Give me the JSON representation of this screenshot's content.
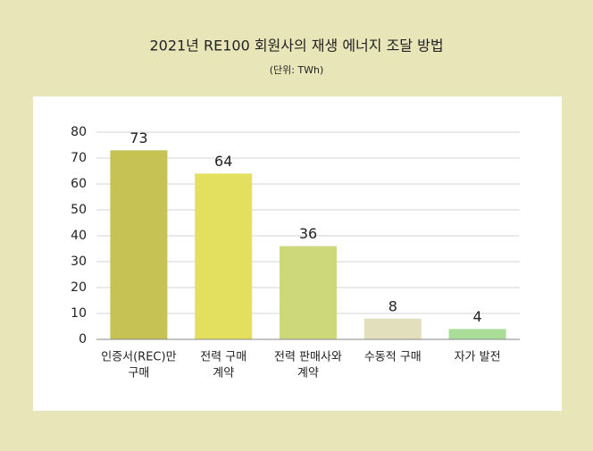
{
  "chart_data": {
    "type": "bar",
    "title": "2021년 RE100 회원사의 재생 에너지 조달 방법",
    "subtitle": "(단위: TWh)",
    "categories": [
      [
        "인증서(REC)만",
        "구매"
      ],
      [
        "전력 구매",
        "계약"
      ],
      [
        "전력 판매사와",
        "계약"
      ],
      [
        "수동적 구매"
      ],
      [
        "자가 발전"
      ]
    ],
    "values": [
      73,
      64,
      36,
      8,
      4
    ],
    "colors": [
      "#c6c354",
      "#e2e05e",
      "#cdd87a",
      "#e1dfbc",
      "#a9dd98"
    ],
    "ylim": [
      0,
      80
    ],
    "yticks": [
      0,
      10,
      20,
      30,
      40,
      50,
      60,
      70,
      80
    ],
    "grid": true
  }
}
